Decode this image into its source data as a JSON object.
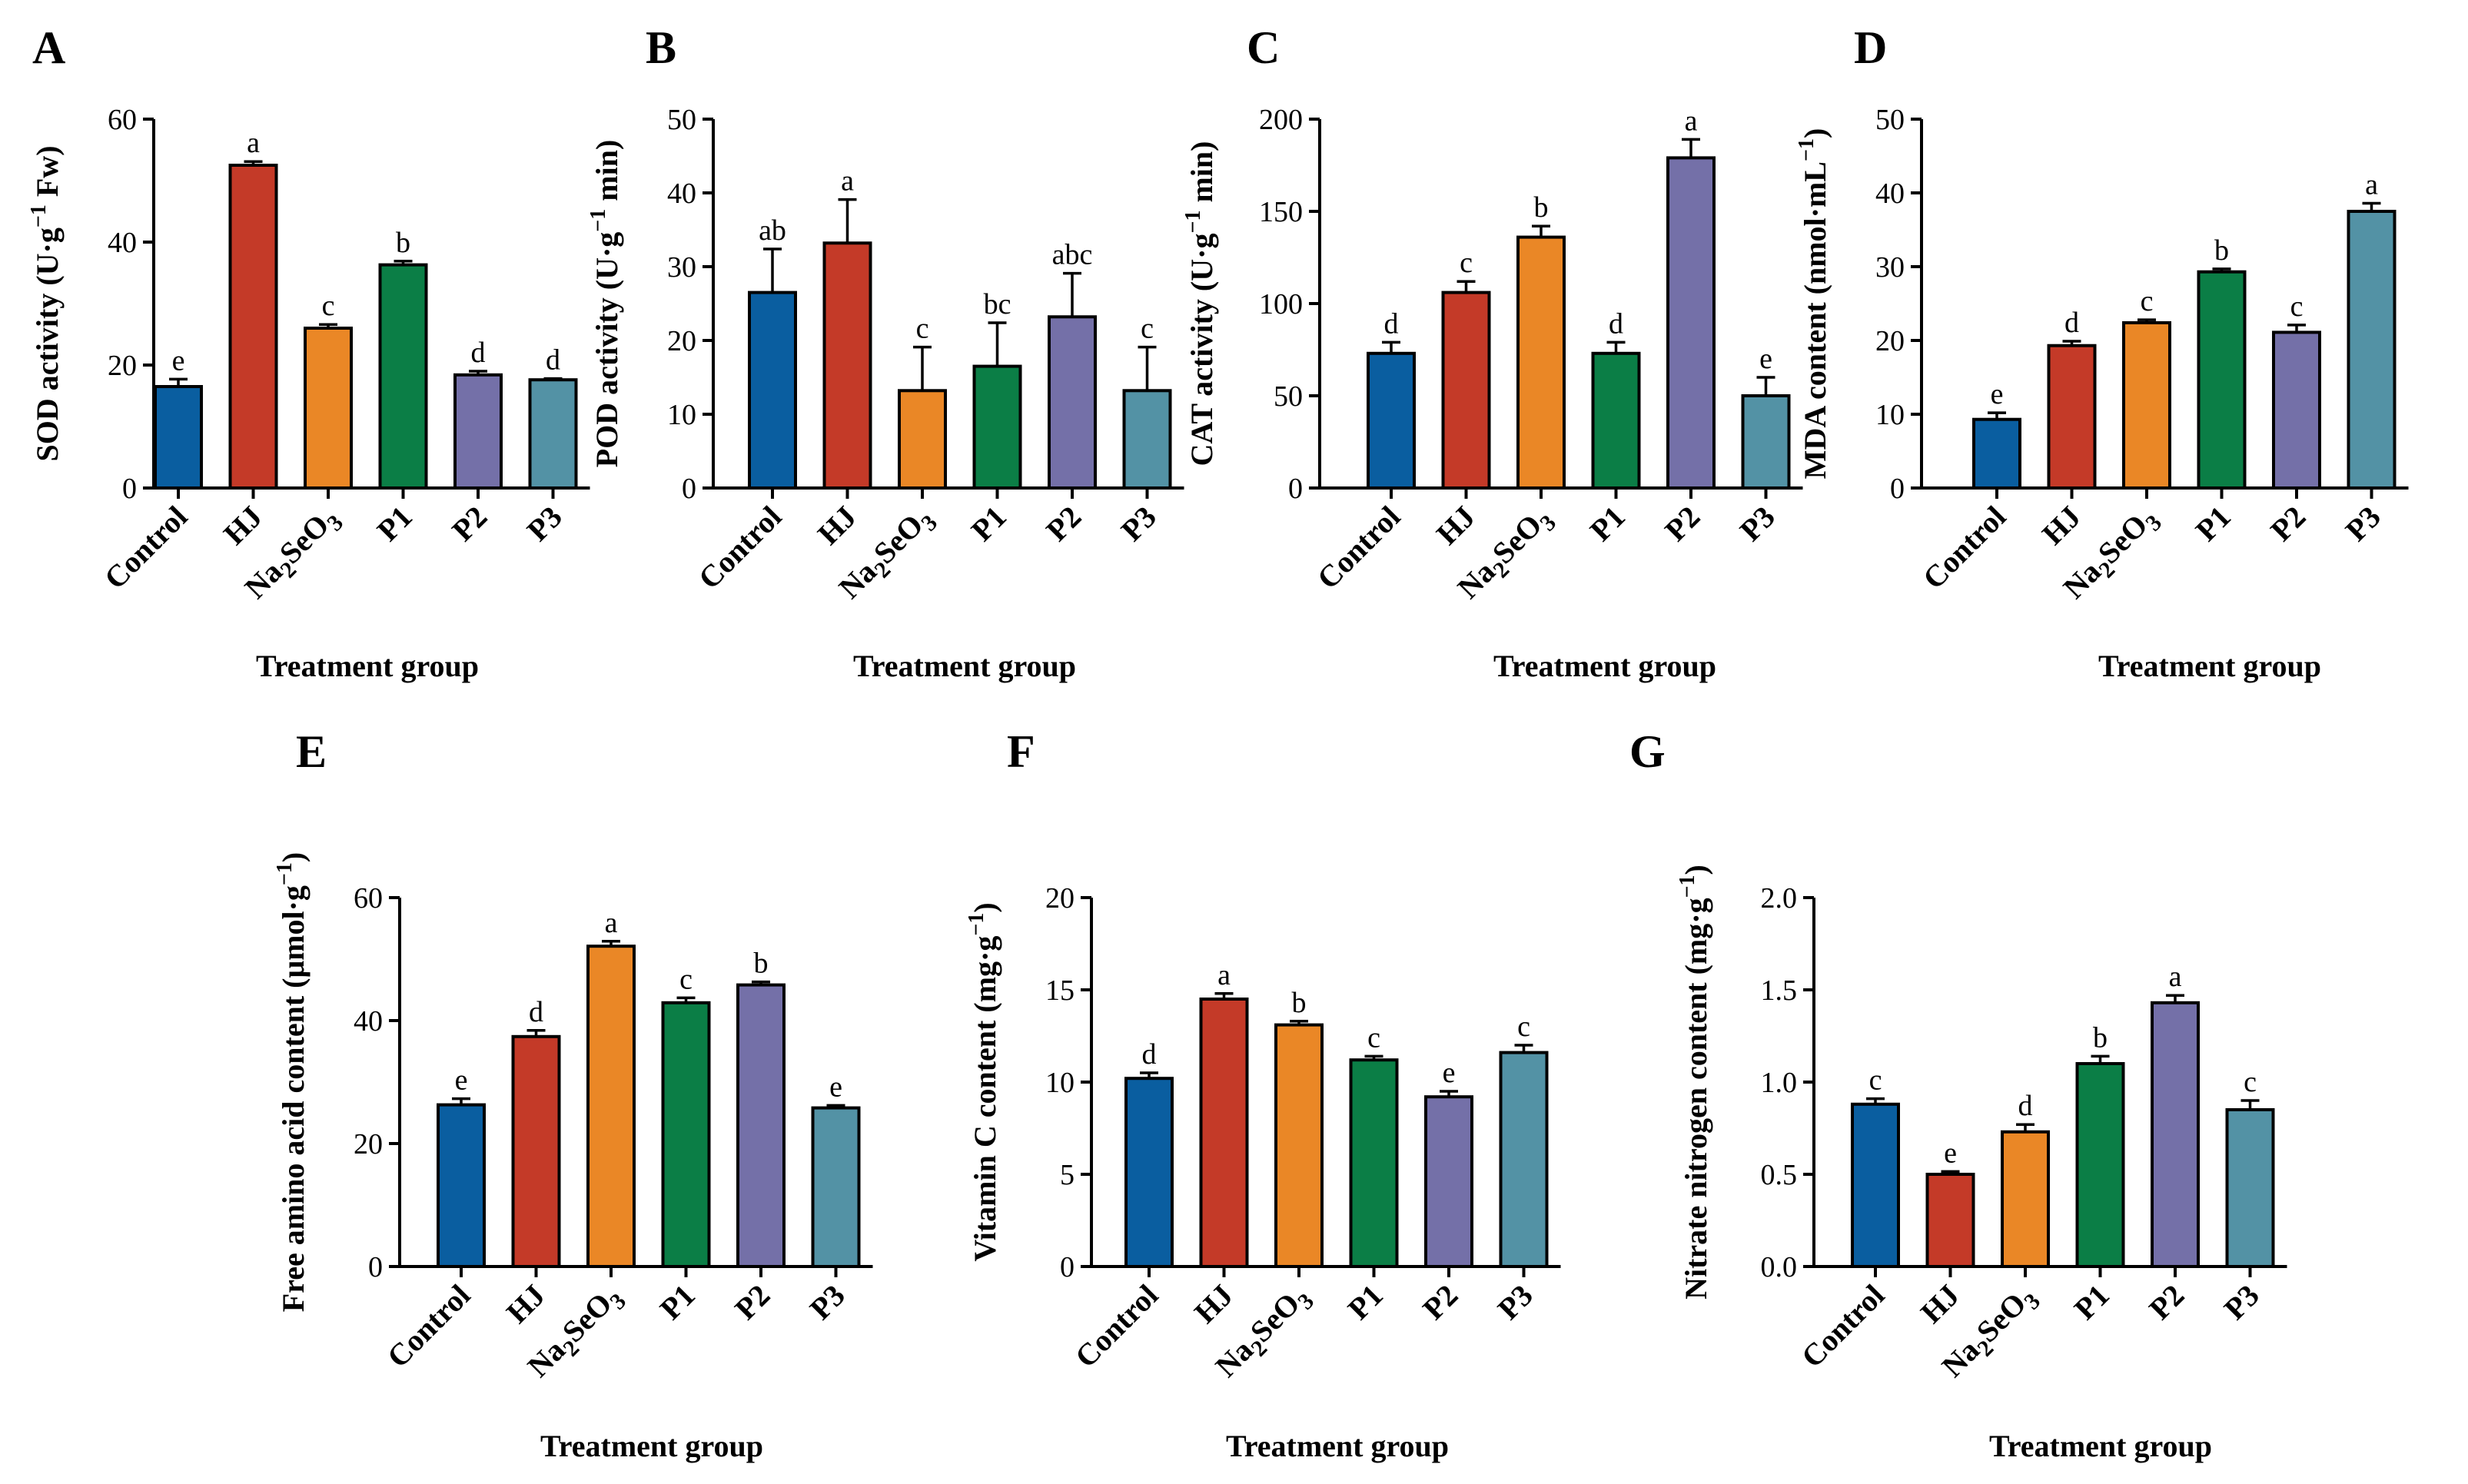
{
  "colors": [
    "#0a5ea0",
    "#c43a28",
    "#ea8726",
    "#0b7e46",
    "#7470a8",
    "#5392a5"
  ],
  "chart_data": [
    {
      "panel": "A",
      "type": "bar",
      "categories": [
        "Control",
        "HJ",
        "Na2SeO3",
        "P1",
        "P2",
        "P3"
      ],
      "values": [
        16.5,
        52.5,
        26,
        36.3,
        18.4,
        17.6
      ],
      "errors": [
        1.2,
        0.6,
        0.6,
        0.6,
        0.6,
        0.2
      ],
      "significance": [
        "e",
        "a",
        "c",
        "b",
        "d",
        "d"
      ],
      "ylabel": "SOD activity (U·g",
      "ylabel_sup": "−1",
      "ylabel_end": " Fw)",
      "xlabel": "Treatment group",
      "yticks": [
        0,
        20,
        40,
        60
      ],
      "ylim": [
        0,
        60
      ]
    },
    {
      "panel": "B",
      "type": "bar",
      "categories": [
        "Control",
        "HJ",
        "Na2SeO3",
        "P1",
        "P2",
        "P3"
      ],
      "values": [
        26.5,
        33.2,
        13.2,
        16.5,
        23.2,
        13.2
      ],
      "errors": [
        5.9,
        5.9,
        5.9,
        5.9,
        5.9,
        5.9
      ],
      "significance": [
        "ab",
        "a",
        "c",
        "bc",
        "abc",
        "c"
      ],
      "ylabel": "POD activity (U·g",
      "ylabel_sup": "−1",
      "ylabel_end": " min)",
      "xlabel": "Treatment group",
      "yticks": [
        0,
        10,
        20,
        30,
        40,
        50
      ],
      "ylim": [
        0,
        50
      ]
    },
    {
      "panel": "C",
      "type": "bar",
      "categories": [
        "Control",
        "HJ",
        "Na2SeO3",
        "P1",
        "P2",
        "P3"
      ],
      "values": [
        73,
        106,
        136,
        73,
        179,
        50
      ],
      "errors": [
        6,
        6,
        6,
        6,
        10,
        10
      ],
      "significance": [
        "d",
        "c",
        "b",
        "d",
        "a",
        "e"
      ],
      "ylabel": "CAT activity (U·g",
      "ylabel_sup": "−1",
      "ylabel_end": " min)",
      "xlabel": "Treatment group",
      "yticks": [
        0,
        50,
        100,
        150,
        200
      ],
      "ylim": [
        0,
        200
      ]
    },
    {
      "panel": "D",
      "type": "bar",
      "categories": [
        "Control",
        "HJ",
        "Na2SeO3",
        "P1",
        "P2",
        "P3"
      ],
      "values": [
        9.3,
        19.3,
        22.4,
        29.3,
        21.1,
        37.5
      ],
      "errors": [
        0.9,
        0.6,
        0.4,
        0.4,
        1.0,
        1.1
      ],
      "significance": [
        "e",
        "d",
        "c",
        "b",
        "c",
        "a"
      ],
      "ylabel": "MDA content (nmol·mL",
      "ylabel_sup": "−1",
      "ylabel_end": ")",
      "xlabel": "Treatment group",
      "yticks": [
        0,
        10,
        20,
        30,
        40,
        50
      ],
      "ylim": [
        0,
        50
      ]
    },
    {
      "panel": "E",
      "type": "bar",
      "categories": [
        "Control",
        "HJ",
        "Na2SeO3",
        "P1",
        "P2",
        "P3"
      ],
      "values": [
        26.3,
        37.4,
        52.1,
        42.9,
        45.8,
        25.8
      ],
      "errors": [
        1.0,
        1.0,
        0.8,
        0.8,
        0.5,
        0.4
      ],
      "significance": [
        "e",
        "d",
        "a",
        "c",
        "b",
        "e"
      ],
      "ylabel": "Free amino acid content  (μmol·g",
      "ylabel_sup": "−1",
      "ylabel_end": ")",
      "xlabel": "Treatment group",
      "yticks": [
        0,
        20,
        40,
        60
      ],
      "ylim": [
        0,
        60
      ]
    },
    {
      "panel": "F",
      "type": "bar",
      "categories": [
        "Control",
        "HJ",
        "Na2SeO3",
        "P1",
        "P2",
        "P3"
      ],
      "values": [
        10.2,
        14.5,
        13.1,
        11.2,
        9.2,
        11.6
      ],
      "errors": [
        0.3,
        0.3,
        0.2,
        0.2,
        0.3,
        0.4
      ],
      "significance": [
        "d",
        "a",
        "b",
        "c",
        "e",
        "c"
      ],
      "ylabel": "Vitamin C content (mg·g",
      "ylabel_sup": "−1",
      "ylabel_end": ")",
      "xlabel": "Treatment group",
      "yticks": [
        0,
        5,
        10,
        15,
        20
      ],
      "ylim": [
        0,
        20
      ]
    },
    {
      "panel": "G",
      "type": "bar",
      "categories": [
        "Control",
        "HJ",
        "Na2SeO3",
        "P1",
        "P2",
        "P3"
      ],
      "values": [
        0.88,
        0.5,
        0.73,
        1.1,
        1.43,
        0.85
      ],
      "errors": [
        0.03,
        0.015,
        0.04,
        0.04,
        0.04,
        0.05
      ],
      "significance": [
        "c",
        "e",
        "d",
        "b",
        "a",
        "c"
      ],
      "ylabel": "Nitrate nitrogen content (mg·g",
      "ylabel_sup": "−1",
      "ylabel_end": ")",
      "xlabel": "Treatment group",
      "yticks": [
        "0.0",
        "0.5",
        "1.0",
        "1.5",
        "2.0"
      ],
      "ylim": [
        0,
        2
      ]
    }
  ]
}
